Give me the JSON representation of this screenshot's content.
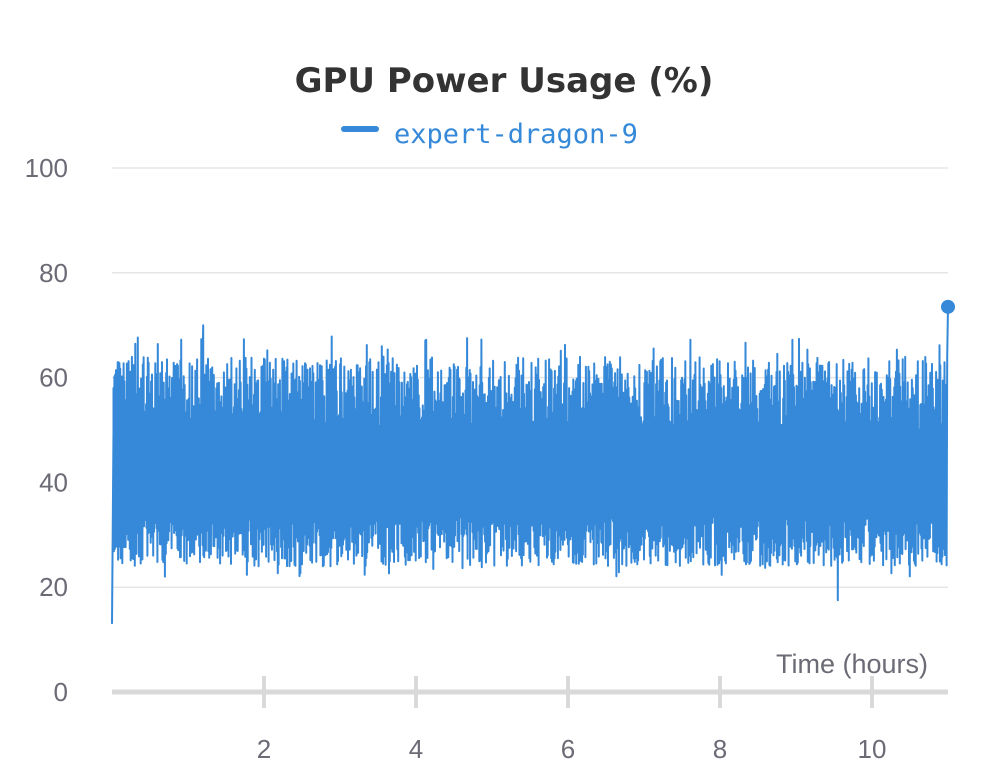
{
  "chart_data": {
    "type": "line",
    "title": "GPU Power Usage (%)",
    "xlabel": "Time (hours)",
    "ylabel": "",
    "xlim": [
      0,
      11
    ],
    "ylim": [
      0,
      100
    ],
    "x_ticks": [
      2,
      4,
      6,
      8,
      10
    ],
    "y_ticks": [
      0,
      20,
      40,
      60,
      80,
      100
    ],
    "grid": true,
    "legend_position": "top-center",
    "series": [
      {
        "name": "expert-dragon-9",
        "color": "#3589d8",
        "sample_interval_hours": 0.0055,
        "low_range": [
          24,
          34
        ],
        "high_range": [
          50,
          64
        ],
        "x": [
          0,
          0.02,
          1.2,
          3.55,
          6.55,
          9.55,
          10.99,
          11.0
        ],
        "y": [
          13,
          58,
          70,
          66,
          63,
          17.5,
          64,
          73.5
        ]
      }
    ]
  }
}
